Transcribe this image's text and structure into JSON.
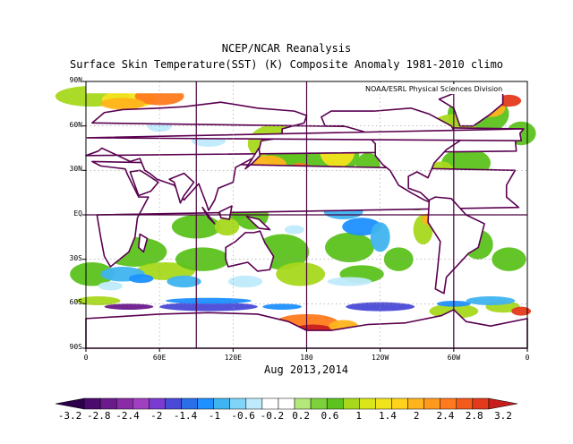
{
  "header": {
    "title": "NCEP/NCAR Reanalysis",
    "subtitle": "Surface Skin Temperature(SST) (K) Composite Anomaly 1981-2010 climo",
    "credit": "NOAA/ESRL Physical Sciences Division",
    "dates": "Aug 2013,2014"
  },
  "axes": {
    "lat_labels": [
      "90N",
      "60N",
      "30N",
      "EQ",
      "30S",
      "60S",
      "90S"
    ],
    "lat_values": [
      90,
      60,
      30,
      0,
      -30,
      -60,
      -90
    ],
    "lon_labels": [
      "0",
      "60E",
      "120E",
      "180",
      "120W",
      "60W",
      "0"
    ],
    "lon_values": [
      0,
      60,
      120,
      180,
      240,
      300,
      360
    ]
  },
  "colorbar": {
    "labels": [
      "-3.2",
      "-2.8",
      "-2.4",
      "-2",
      "-1.4",
      "-1",
      "-0.6",
      "-0.2",
      "0.2",
      "0.6",
      "1",
      "1.4",
      "2",
      "2.4",
      "2.8",
      "3.2"
    ],
    "colors": [
      "#2d004b",
      "#4b0a6e",
      "#6b1a8c",
      "#8a2ba8",
      "#a040c0",
      "#7a3cd0",
      "#4a4ad8",
      "#2a6ee8",
      "#1e90ff",
      "#3fb4f0",
      "#7fd4f7",
      "#bfeafb",
      "#ffffff",
      "#ffffff",
      "#b4e87a",
      "#7dd23c",
      "#5cc21e",
      "#a8d81c",
      "#d8e61a",
      "#f2e41c",
      "#ffd21c",
      "#ffb41c",
      "#ff9a1c",
      "#ff7a1c",
      "#f45a1c",
      "#e43a1c",
      "#c81e1e"
    ]
  },
  "map": {
    "land_color": "#ffffff",
    "coast_color": "#5a0050",
    "ocean_neutral": "#ffffff",
    "warm_colors": [
      "#5cc21e",
      "#a8d81c",
      "#f2e41c",
      "#ffb41c",
      "#ff7a1c",
      "#e43a1c",
      "#c81e1e"
    ],
    "cool_colors": [
      "#bfeafb",
      "#3fb4f0",
      "#1e90ff",
      "#4a4ad8",
      "#6b1a8c",
      "#2d004b"
    ]
  }
}
